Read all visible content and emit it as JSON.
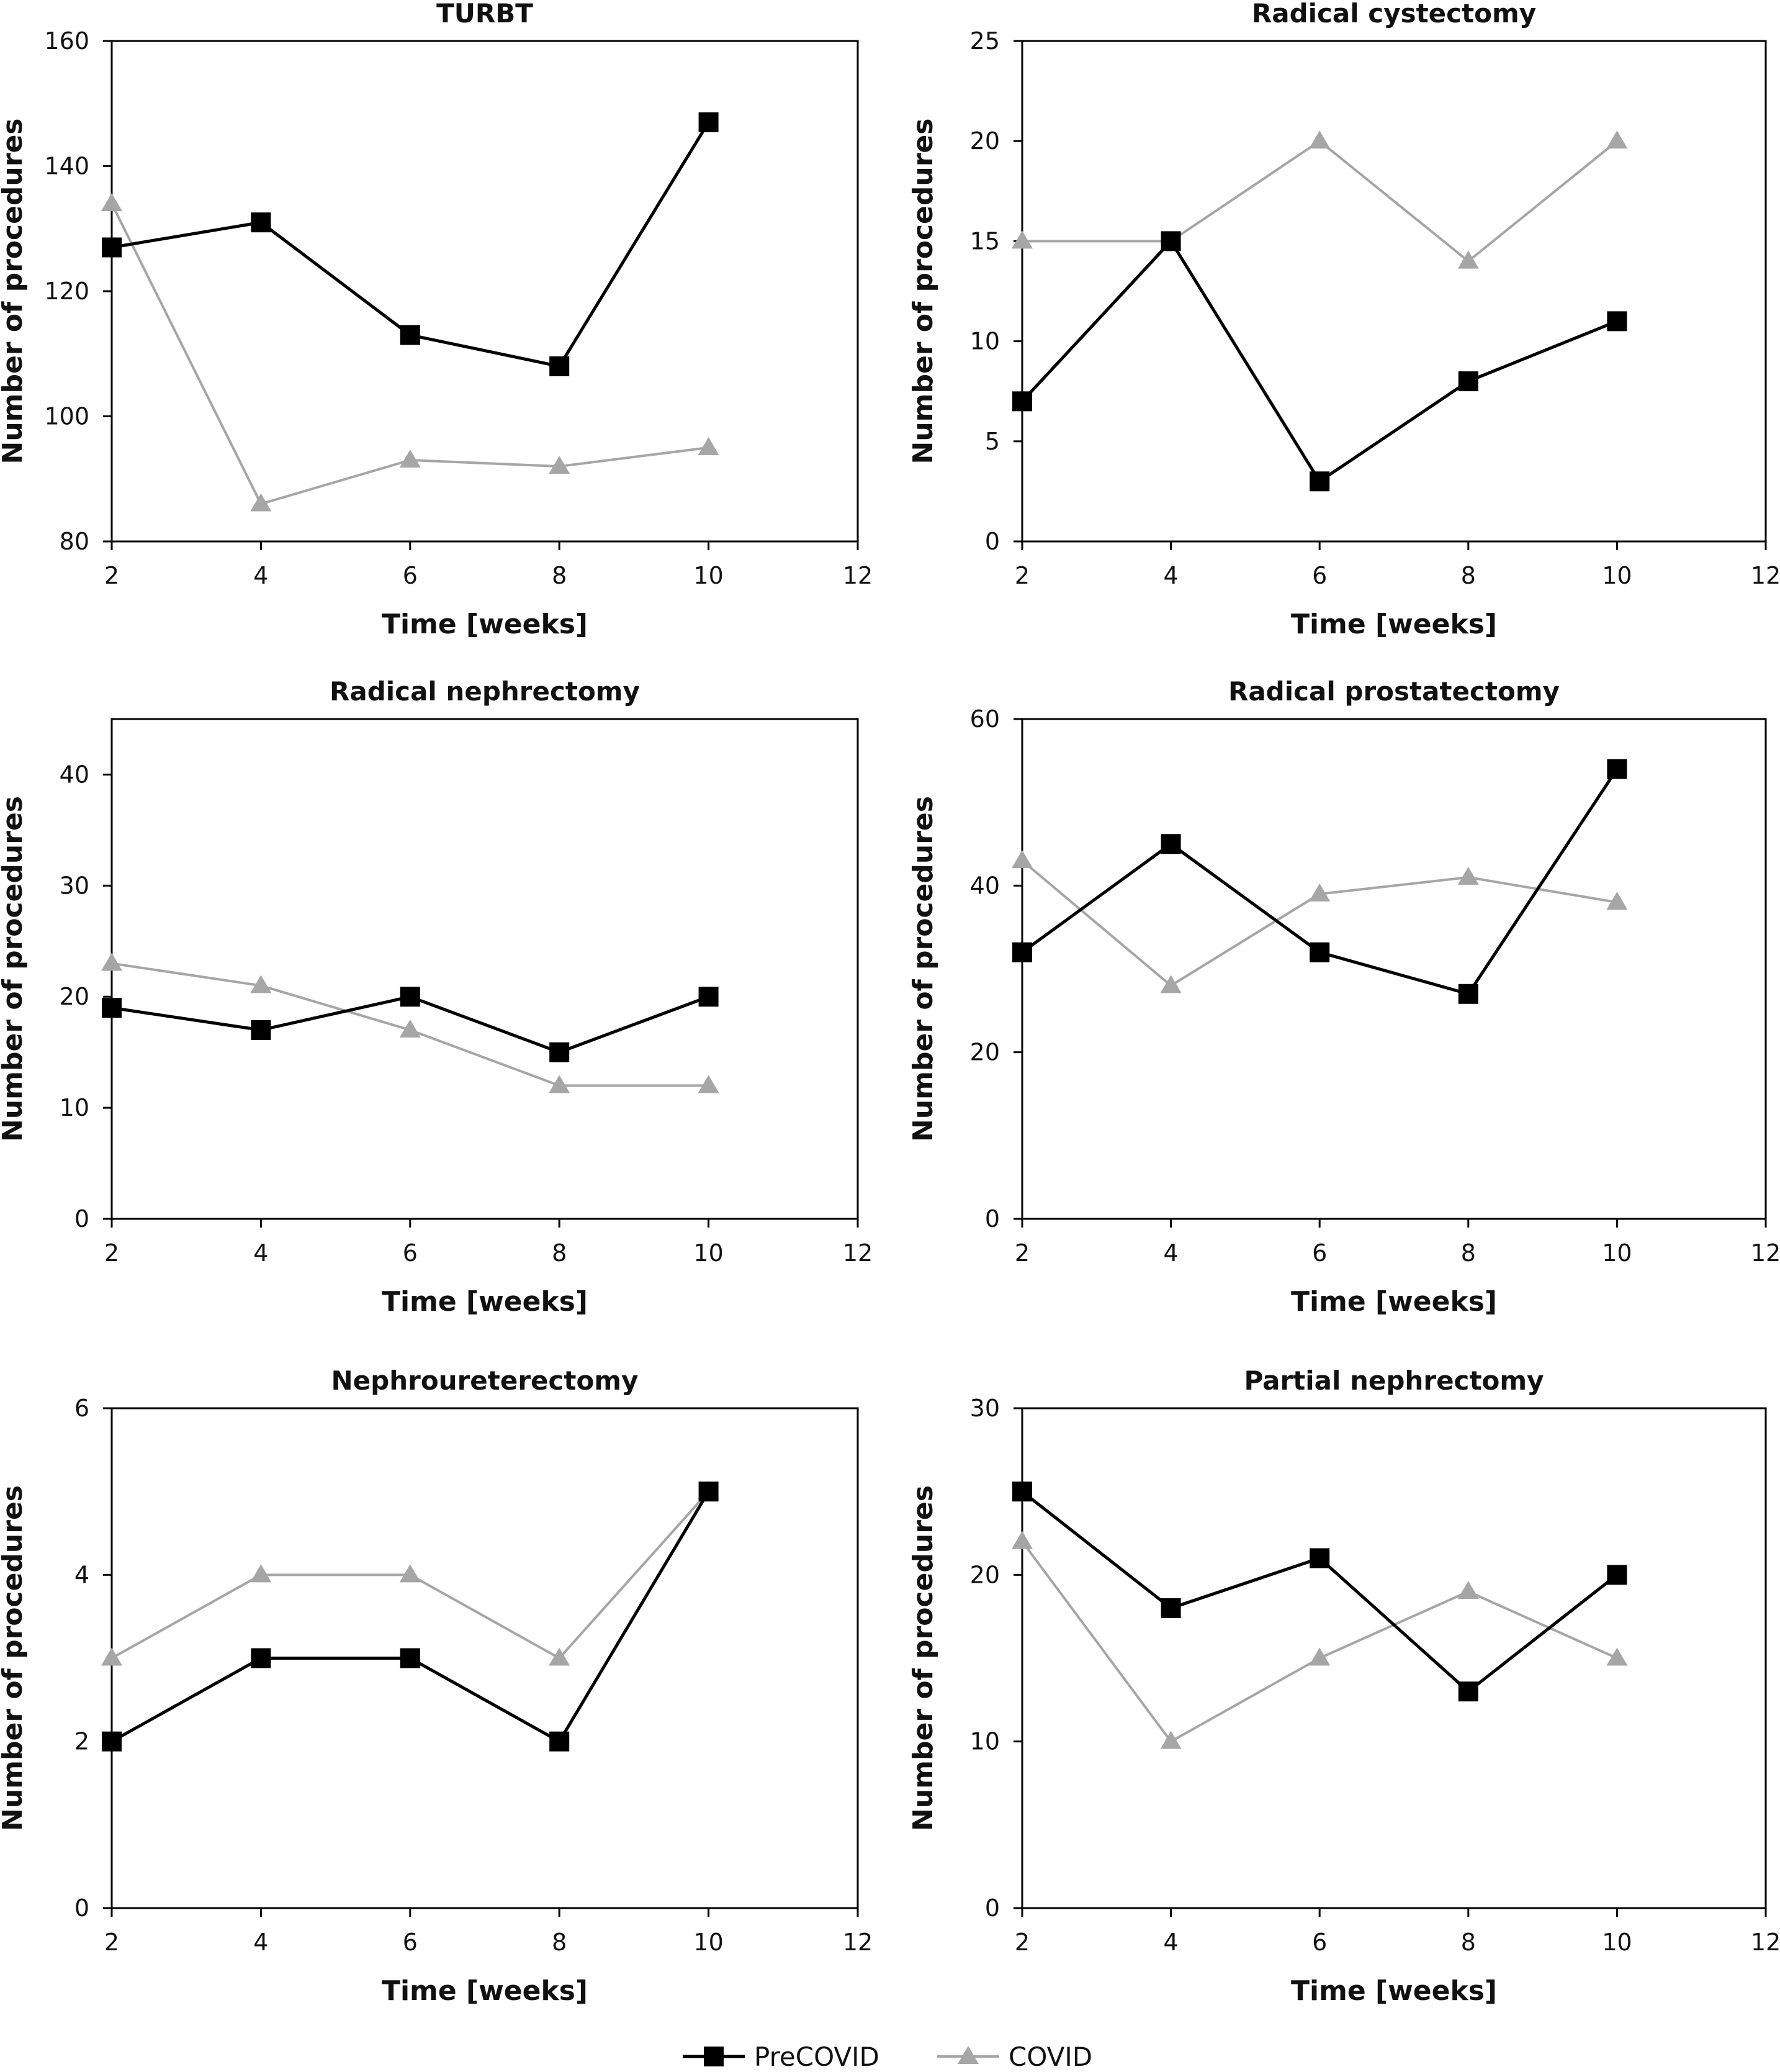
{
  "chart_data": [
    {
      "type": "line",
      "title": "TURBT",
      "xlabel": "Time [weeks]",
      "ylabel": "Number of procedures",
      "xlim": [
        2,
        12
      ],
      "xticks": [
        2,
        4,
        6,
        8,
        10,
        12
      ],
      "ylim": [
        80,
        160
      ],
      "yticks": [
        80,
        100,
        120,
        140,
        160
      ],
      "x": [
        2,
        4,
        6,
        8,
        10
      ],
      "series": [
        {
          "name": "PreCOVID",
          "color": "#000000",
          "marker": "square",
          "values": [
            127,
            131,
            113,
            108,
            147
          ]
        },
        {
          "name": "COVID",
          "color": "#a6a6a6",
          "marker": "triangle",
          "values": [
            134,
            86,
            93,
            92,
            95
          ]
        }
      ],
      "grid": false
    },
    {
      "type": "line",
      "title": "Radical cystectomy",
      "xlabel": "Time [weeks]",
      "ylabel": "Number of procedures",
      "xlim": [
        2,
        12
      ],
      "xticks": [
        2,
        4,
        6,
        8,
        10,
        12
      ],
      "ylim": [
        0,
        25
      ],
      "yticks": [
        0,
        5,
        10,
        15,
        20,
        25
      ],
      "x": [
        2,
        4,
        6,
        8,
        10
      ],
      "series": [
        {
          "name": "PreCOVID",
          "color": "#000000",
          "marker": "square",
          "values": [
            7,
            15,
            3,
            8,
            11
          ]
        },
        {
          "name": "COVID",
          "color": "#a6a6a6",
          "marker": "triangle",
          "values": [
            15,
            15,
            20,
            14,
            20
          ]
        }
      ],
      "grid": false
    },
    {
      "type": "line",
      "title": "Radical nephrectomy",
      "xlabel": "Time [weeks]",
      "ylabel": "Number of procedures",
      "xlim": [
        2,
        12
      ],
      "xticks": [
        2,
        4,
        6,
        8,
        10,
        12
      ],
      "ylim": [
        0,
        45
      ],
      "yticks": [
        0,
        10,
        20,
        30,
        40
      ],
      "x": [
        2,
        4,
        6,
        8,
        10
      ],
      "series": [
        {
          "name": "PreCOVID",
          "color": "#000000",
          "marker": "square",
          "values": [
            19,
            17,
            20,
            15,
            20
          ]
        },
        {
          "name": "COVID",
          "color": "#a6a6a6",
          "marker": "triangle",
          "values": [
            23,
            21,
            17,
            12,
            12
          ]
        }
      ],
      "grid": false
    },
    {
      "type": "line",
      "title": "Radical prostatectomy",
      "xlabel": "Time [weeks]",
      "ylabel": "Number of procedures",
      "xlim": [
        2,
        12
      ],
      "xticks": [
        2,
        4,
        6,
        8,
        10,
        12
      ],
      "ylim": [
        0,
        60
      ],
      "yticks": [
        0,
        20,
        40,
        60
      ],
      "x": [
        2,
        4,
        6,
        8,
        10
      ],
      "series": [
        {
          "name": "PreCOVID",
          "color": "#000000",
          "marker": "square",
          "values": [
            32,
            45,
            32,
            27,
            54
          ]
        },
        {
          "name": "COVID",
          "color": "#a6a6a6",
          "marker": "triangle",
          "values": [
            43,
            28,
            39,
            41,
            38
          ]
        }
      ],
      "grid": false
    },
    {
      "type": "line",
      "title": "Nephroureterectomy",
      "xlabel": "Time [weeks]",
      "ylabel": "Number of procedures",
      "xlim": [
        2,
        12
      ],
      "xticks": [
        2,
        4,
        6,
        8,
        10,
        12
      ],
      "ylim": [
        0,
        6
      ],
      "yticks": [
        0,
        2,
        4,
        6
      ],
      "x": [
        2,
        4,
        6,
        8,
        10
      ],
      "series": [
        {
          "name": "PreCOVID",
          "color": "#000000",
          "marker": "square",
          "values": [
            2,
            3,
            3,
            2,
            5
          ]
        },
        {
          "name": "COVID",
          "color": "#a6a6a6",
          "marker": "triangle",
          "values": [
            3,
            4,
            4,
            3,
            5
          ]
        }
      ],
      "grid": false
    },
    {
      "type": "line",
      "title": "Partial nephrectomy",
      "xlabel": "Time [weeks]",
      "ylabel": "Number of procedures",
      "xlim": [
        2,
        12
      ],
      "xticks": [
        2,
        4,
        6,
        8,
        10,
        12
      ],
      "ylim": [
        0,
        30
      ],
      "yticks": [
        0,
        10,
        20,
        30
      ],
      "x": [
        2,
        4,
        6,
        8,
        10
      ],
      "series": [
        {
          "name": "PreCOVID",
          "color": "#000000",
          "marker": "square",
          "values": [
            25,
            18,
            21,
            13,
            20
          ]
        },
        {
          "name": "COVID",
          "color": "#a6a6a6",
          "marker": "triangle",
          "values": [
            22,
            10,
            15,
            19,
            15
          ]
        }
      ],
      "grid": false
    }
  ],
  "legend": {
    "placement": "bottom-center",
    "entries": [
      {
        "label": "PreCOVID",
        "color": "#000000",
        "marker": "square"
      },
      {
        "label": "COVID",
        "color": "#a6a6a6",
        "marker": "triangle"
      }
    ]
  }
}
